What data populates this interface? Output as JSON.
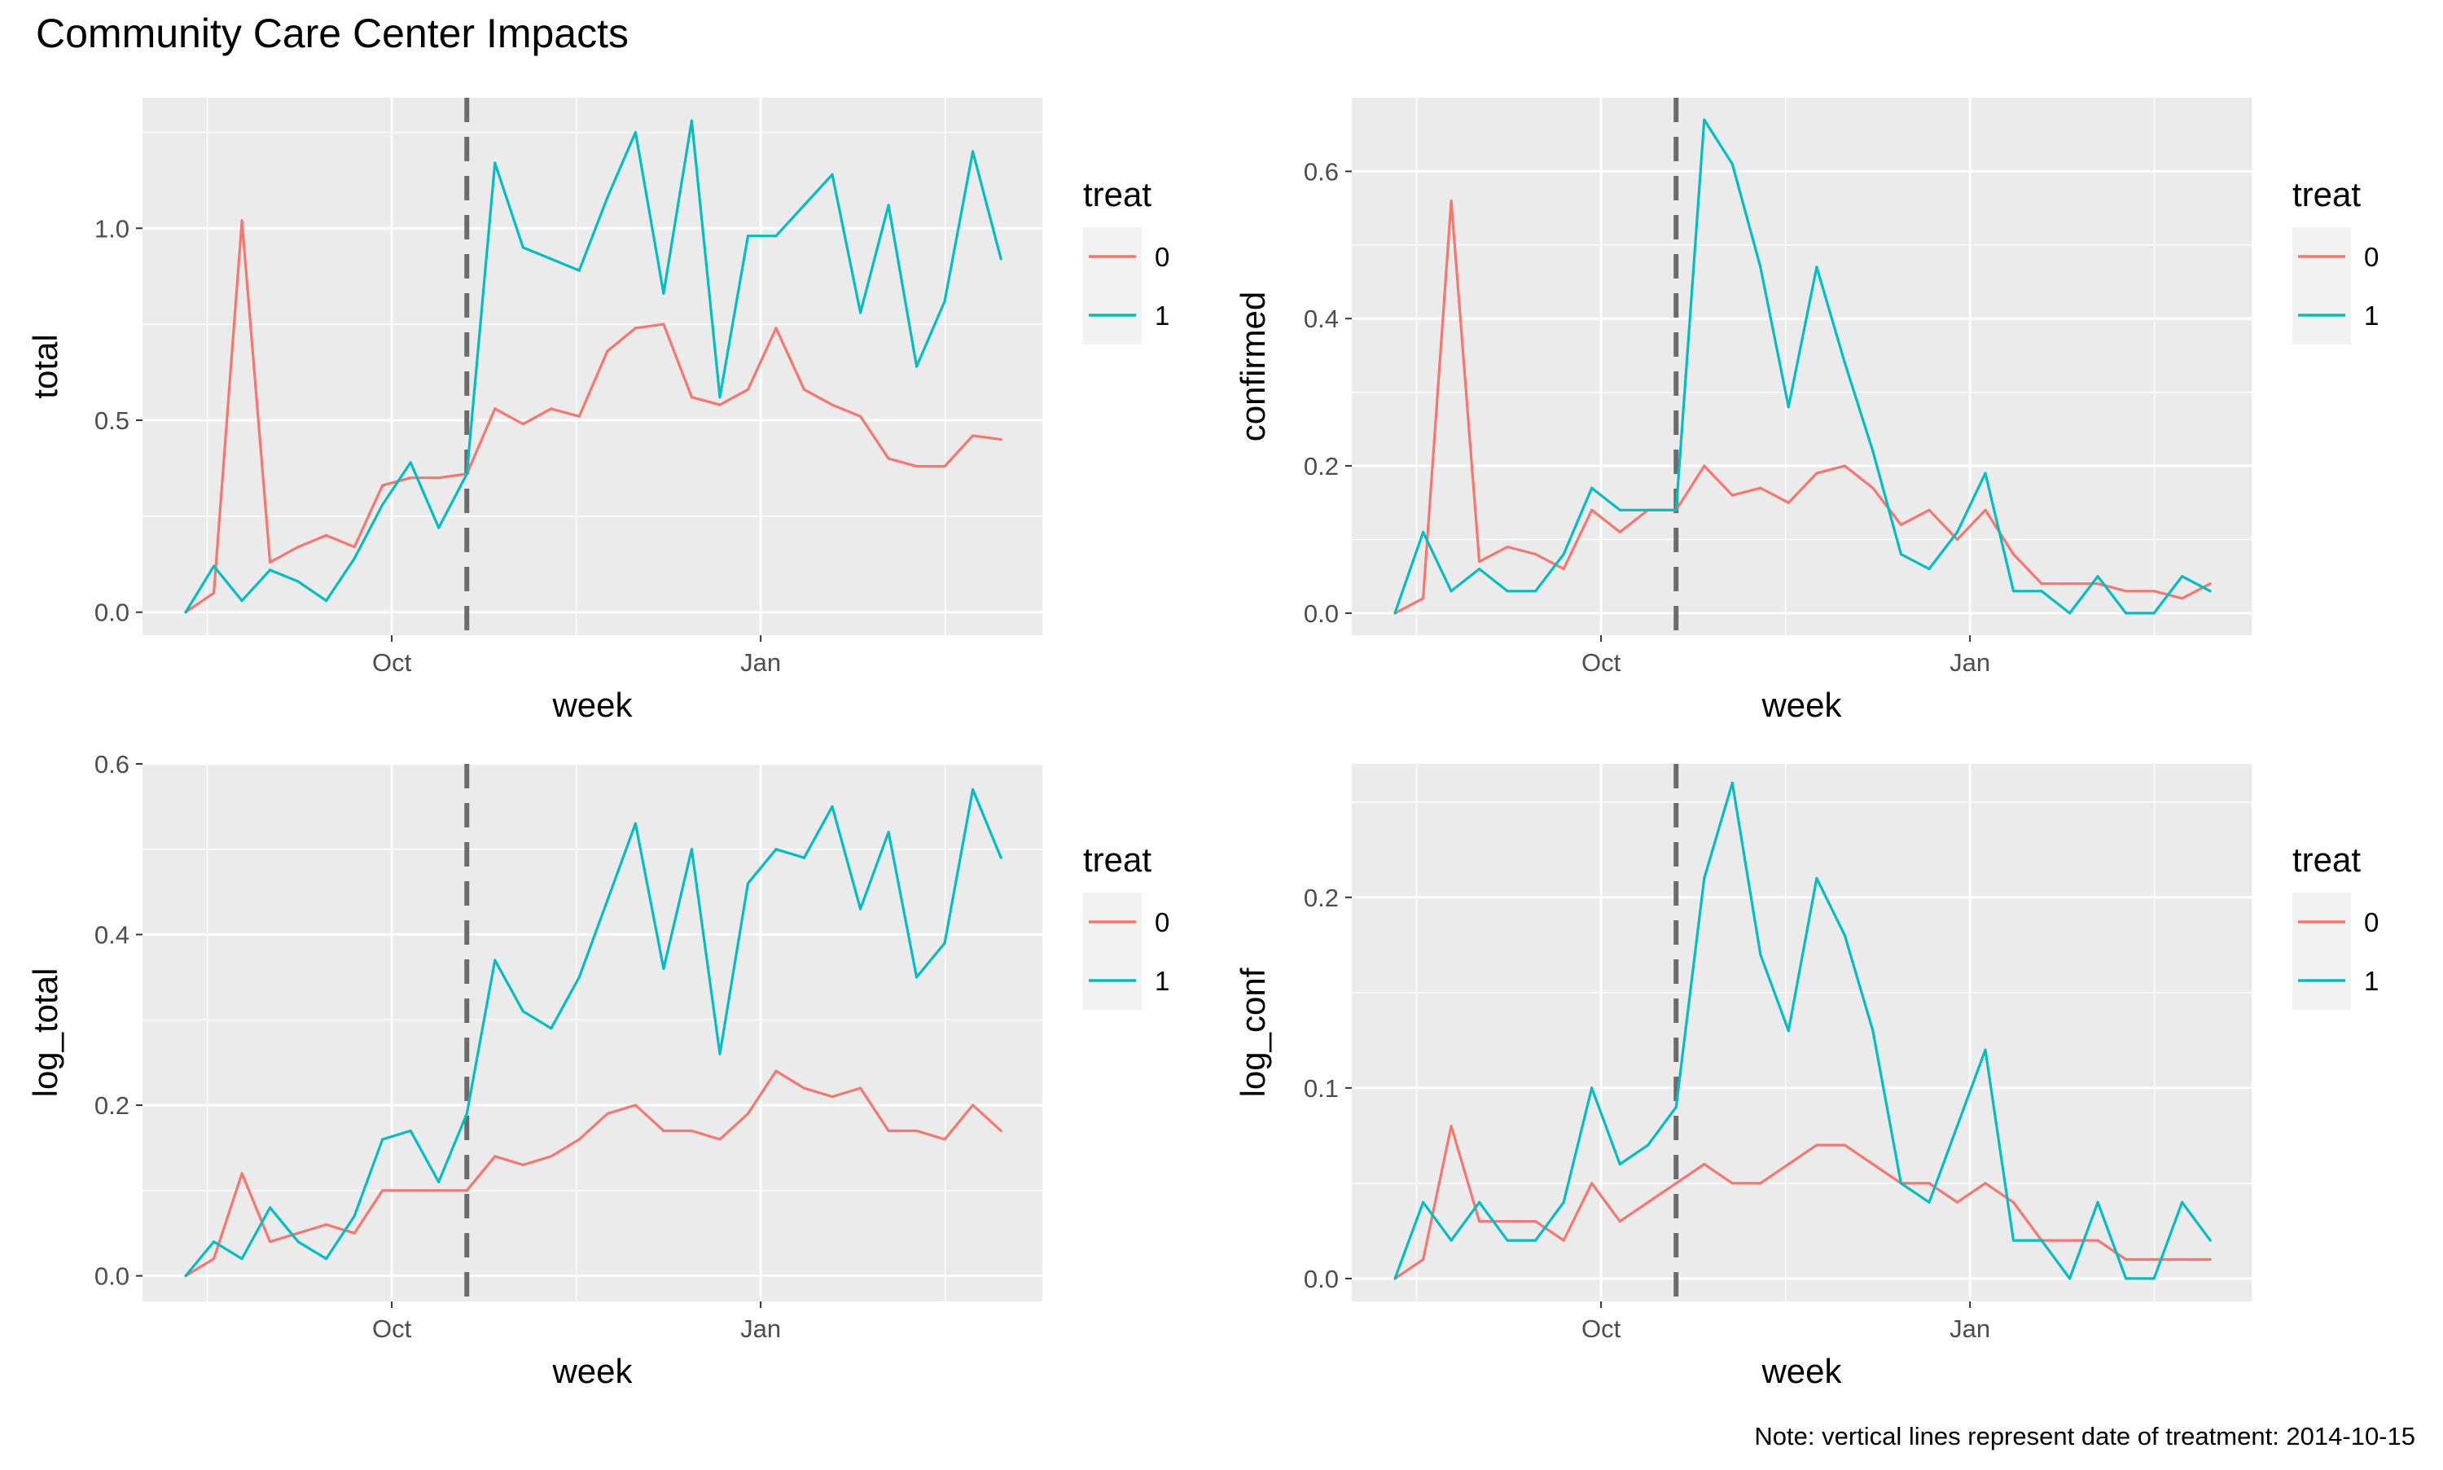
{
  "title": "Community Care Center Impacts",
  "note": "Note: vertical lines represent date of treatment: 2014-10-15",
  "colors": {
    "panel_bg": "#ebebeb",
    "grid": "#ffffff",
    "series_0": "#f8766d",
    "series_1": "#00bfc4",
    "treatment_line": "#6b6b6b",
    "tick_text": "#4d4d4d",
    "legend_bg": "#f2f2f2"
  },
  "chart_data": [
    {
      "type": "line",
      "xlabel": "week",
      "ylabel": "total",
      "x_tick_labels": [
        "Oct",
        "Jan"
      ],
      "y_ticks": [
        0.0,
        0.5,
        1.0
      ],
      "y_tick_labels": [
        "0.0",
        "0.5",
        "1.0"
      ],
      "ylim": [
        -0.06,
        1.34
      ],
      "treatment_week": 10,
      "legend": {
        "title": "treat",
        "position": "right",
        "entries": [
          "0",
          "1"
        ]
      },
      "series": [
        {
          "name": "0",
          "values": [
            0.0,
            0.05,
            1.02,
            0.13,
            0.17,
            0.2,
            0.17,
            0.33,
            0.35,
            0.35,
            0.36,
            0.53,
            0.49,
            0.53,
            0.51,
            0.68,
            0.74,
            0.75,
            0.56,
            0.54,
            0.58,
            0.74,
            0.58,
            0.54,
            0.51,
            0.4,
            0.38,
            0.38,
            0.46,
            0.45
          ]
        },
        {
          "name": "1",
          "values": [
            0.0,
            0.12,
            0.03,
            0.11,
            0.08,
            0.03,
            0.14,
            0.28,
            0.39,
            0.22,
            0.36,
            1.17,
            0.95,
            0.92,
            0.89,
            1.08,
            1.25,
            0.83,
            1.28,
            0.56,
            0.98,
            0.98,
            1.06,
            1.14,
            0.78,
            1.06,
            0.64,
            0.81,
            1.2,
            0.92
          ]
        }
      ]
    },
    {
      "type": "line",
      "xlabel": "week",
      "ylabel": "confirmed",
      "x_tick_labels": [
        "Oct",
        "Jan"
      ],
      "y_ticks": [
        0.0,
        0.2,
        0.4,
        0.6
      ],
      "y_tick_labels": [
        "0.0",
        "0.2",
        "0.4",
        "0.6"
      ],
      "ylim": [
        -0.03,
        0.7
      ],
      "treatment_week": 10,
      "legend": {
        "title": "treat",
        "position": "right",
        "entries": [
          "0",
          "1"
        ]
      },
      "series": [
        {
          "name": "0",
          "values": [
            0.0,
            0.02,
            0.56,
            0.07,
            0.09,
            0.08,
            0.06,
            0.14,
            0.11,
            0.14,
            0.14,
            0.2,
            0.16,
            0.17,
            0.15,
            0.19,
            0.2,
            0.17,
            0.12,
            0.14,
            0.1,
            0.14,
            0.08,
            0.04,
            0.04,
            0.04,
            0.03,
            0.03,
            0.02,
            0.04
          ]
        },
        {
          "name": "1",
          "values": [
            0.0,
            0.11,
            0.03,
            0.06,
            0.03,
            0.03,
            0.08,
            0.17,
            0.14,
            0.14,
            0.14,
            0.67,
            0.61,
            0.47,
            0.28,
            0.47,
            0.34,
            0.22,
            0.08,
            0.06,
            0.11,
            0.19,
            0.03,
            0.03,
            0.0,
            0.05,
            0.0,
            0.0,
            0.05,
            0.03
          ]
        }
      ]
    },
    {
      "type": "line",
      "xlabel": "week",
      "ylabel": "log_total",
      "x_tick_labels": [
        "Oct",
        "Jan"
      ],
      "y_ticks": [
        0.0,
        0.2,
        0.4,
        0.6
      ],
      "y_tick_labels": [
        "0.0",
        "0.2",
        "0.4",
        "0.6"
      ],
      "ylim": [
        -0.03,
        0.6
      ],
      "treatment_week": 10,
      "legend": {
        "title": "treat",
        "position": "right",
        "entries": [
          "0",
          "1"
        ]
      },
      "series": [
        {
          "name": "0",
          "values": [
            0.0,
            0.02,
            0.12,
            0.04,
            0.05,
            0.06,
            0.05,
            0.1,
            0.1,
            0.1,
            0.1,
            0.14,
            0.13,
            0.14,
            0.16,
            0.19,
            0.2,
            0.17,
            0.17,
            0.16,
            0.19,
            0.24,
            0.22,
            0.21,
            0.22,
            0.17,
            0.17,
            0.16,
            0.2,
            0.17
          ]
        },
        {
          "name": "1",
          "values": [
            0.0,
            0.04,
            0.02,
            0.08,
            0.04,
            0.02,
            0.07,
            0.16,
            0.17,
            0.11,
            0.19,
            0.37,
            0.31,
            0.29,
            0.35,
            0.44,
            0.53,
            0.36,
            0.5,
            0.26,
            0.46,
            0.5,
            0.49,
            0.55,
            0.43,
            0.52,
            0.35,
            0.39,
            0.57,
            0.49
          ]
        }
      ]
    },
    {
      "type": "line",
      "xlabel": "week",
      "ylabel": "log_conf",
      "x_tick_labels": [
        "Oct",
        "Jan"
      ],
      "y_ticks": [
        0.0,
        0.1,
        0.2
      ],
      "y_tick_labels": [
        "0.0",
        "0.1",
        "0.2"
      ],
      "ylim": [
        -0.012,
        0.27
      ],
      "treatment_week": 10,
      "legend": {
        "title": "treat",
        "position": "right",
        "entries": [
          "0",
          "1"
        ]
      },
      "series": [
        {
          "name": "0",
          "values": [
            0.0,
            0.01,
            0.08,
            0.03,
            0.03,
            0.03,
            0.02,
            0.05,
            0.03,
            0.04,
            0.05,
            0.06,
            0.05,
            0.05,
            0.06,
            0.07,
            0.07,
            0.06,
            0.05,
            0.05,
            0.04,
            0.05,
            0.04,
            0.02,
            0.02,
            0.02,
            0.01,
            0.01,
            0.01,
            0.01
          ]
        },
        {
          "name": "1",
          "values": [
            0.0,
            0.04,
            0.02,
            0.04,
            0.02,
            0.02,
            0.04,
            0.1,
            0.06,
            0.07,
            0.09,
            0.21,
            0.26,
            0.17,
            0.13,
            0.21,
            0.18,
            0.13,
            0.05,
            0.04,
            0.08,
            0.12,
            0.02,
            0.02,
            0.0,
            0.04,
            0.0,
            0.0,
            0.04,
            0.02
          ]
        }
      ]
    }
  ]
}
